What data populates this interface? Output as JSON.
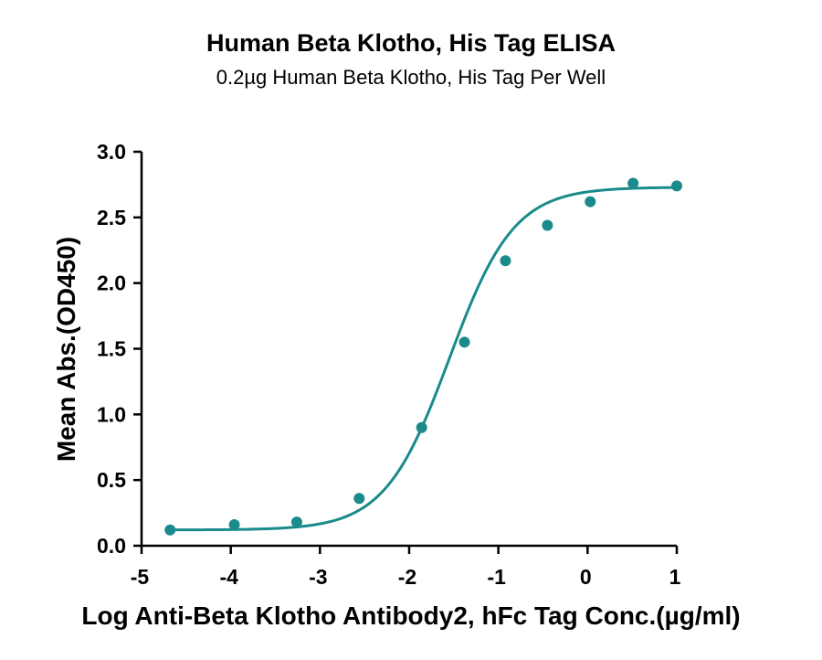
{
  "chart_data": {
    "type": "scatter",
    "title": "Human Beta Klotho, His Tag ELISA",
    "subtitle": "0.2µg Human Beta Klotho, His Tag Per Well",
    "xlabel": "Log Anti-Beta Klotho Antibody2, hFc Tag Conc.(µg/ml)",
    "ylabel": "Mean Abs.(OD450)",
    "xlim": [
      -5,
      1
    ],
    "ylim": [
      0,
      3.0
    ],
    "x_ticks": [
      -5,
      -4,
      -3,
      -2,
      -1,
      0,
      1
    ],
    "x_tick_labels": [
      "-5",
      "-4",
      "-3",
      "-2",
      "-1",
      "0",
      "1"
    ],
    "y_ticks": [
      0,
      0.5,
      1.0,
      1.5,
      2.0,
      2.5,
      3.0
    ],
    "y_tick_labels": [
      "0.0",
      "0.5",
      "1.0",
      "1.5",
      "2.0",
      "2.5",
      "3.0"
    ],
    "grid": false,
    "legend": "none",
    "color": "#1a8a8a",
    "series": [
      {
        "points": [
          {
            "x": -4.68,
            "y": 0.12
          },
          {
            "x": -3.96,
            "y": 0.16
          },
          {
            "x": -3.26,
            "y": 0.18
          },
          {
            "x": -2.56,
            "y": 0.36
          },
          {
            "x": -1.86,
            "y": 0.9
          },
          {
            "x": -1.38,
            "y": 1.55
          },
          {
            "x": -0.92,
            "y": 2.17
          },
          {
            "x": -0.45,
            "y": 2.44
          },
          {
            "x": 0.03,
            "y": 2.62
          },
          {
            "x": 0.51,
            "y": 2.76
          },
          {
            "x": 1.0,
            "y": 2.74
          }
        ],
        "fit": {
          "model": "4PL",
          "bottom": 0.12,
          "top": 2.73,
          "logEC50": -1.55,
          "hill": 1.2
        }
      }
    ]
  }
}
